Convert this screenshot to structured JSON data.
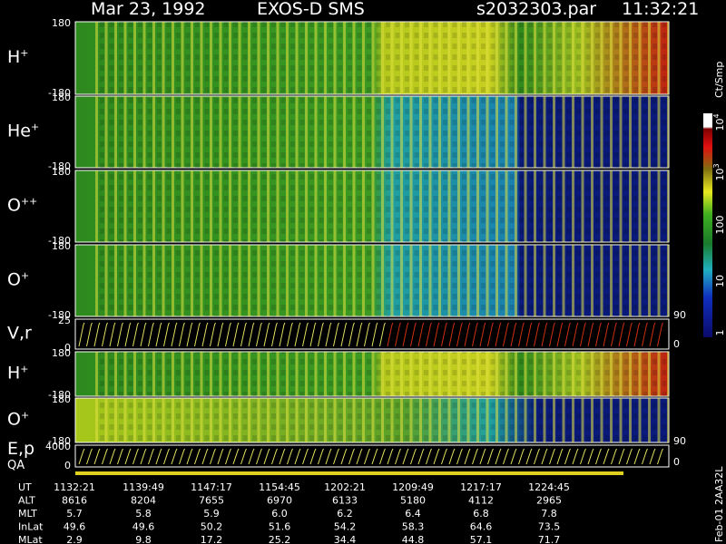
{
  "header": {
    "date": "Mar 23, 1992",
    "instrument": "EXOS-D SMS",
    "file": "s2032303.par",
    "time": "11:32:21"
  },
  "panels": [
    {
      "label": "H",
      "charge": "+",
      "top": "180",
      "bottom": "-180"
    },
    {
      "label": "He",
      "charge": "+",
      "top": "180",
      "bottom": "-180"
    },
    {
      "label": "O",
      "charge": "++",
      "top": "180",
      "bottom": "-180"
    },
    {
      "label": "O",
      "charge": "+",
      "top": "180",
      "bottom": "-180",
      "right": "90"
    },
    {
      "label": "V,r",
      "top": "25",
      "bottom": "0",
      "right": "0"
    },
    {
      "label": "H",
      "charge": "+",
      "top": "180",
      "bottom": "-180"
    },
    {
      "label": "O",
      "charge": "+",
      "top": "180",
      "bottom": "-180",
      "right": "90"
    },
    {
      "label": "E,p",
      "label2": "QA",
      "top": "4000",
      "bottom": "0",
      "right": "0"
    }
  ],
  "colorbar": {
    "title": "Ct/Smp",
    "labels": [
      {
        "text": "1"
      },
      {
        "text": "10"
      },
      {
        "text": "100"
      },
      {
        "text": "10",
        "sup": "3"
      },
      {
        "text": "10",
        "sup": "4"
      }
    ]
  },
  "footer": {
    "rows": [
      {
        "name": "UT",
        "values": [
          "1132:21",
          "1139:49",
          "1147:17",
          "1154:45",
          "1202:21",
          "1209:49",
          "1217:17",
          "1224:45"
        ]
      },
      {
        "name": "ALT",
        "values": [
          "8616",
          "8204",
          "7655",
          "6970",
          "6133",
          "5180",
          "4112",
          "2965"
        ]
      },
      {
        "name": "MLT",
        "values": [
          "5.7",
          "5.8",
          "5.9",
          "6.0",
          "6.2",
          "6.4",
          "6.8",
          "7.8"
        ]
      },
      {
        "name": "InLat",
        "values": [
          "49.6",
          "49.6",
          "50.2",
          "51.6",
          "54.2",
          "58.3",
          "64.6",
          "73.5"
        ]
      },
      {
        "name": "MLat",
        "values": [
          "2.9",
          "9.8",
          "17.2",
          "25.2",
          "34.4",
          "44.8",
          "57.1",
          "71.7"
        ]
      }
    ]
  },
  "side_note": "Feb-01 2AA32L"
}
